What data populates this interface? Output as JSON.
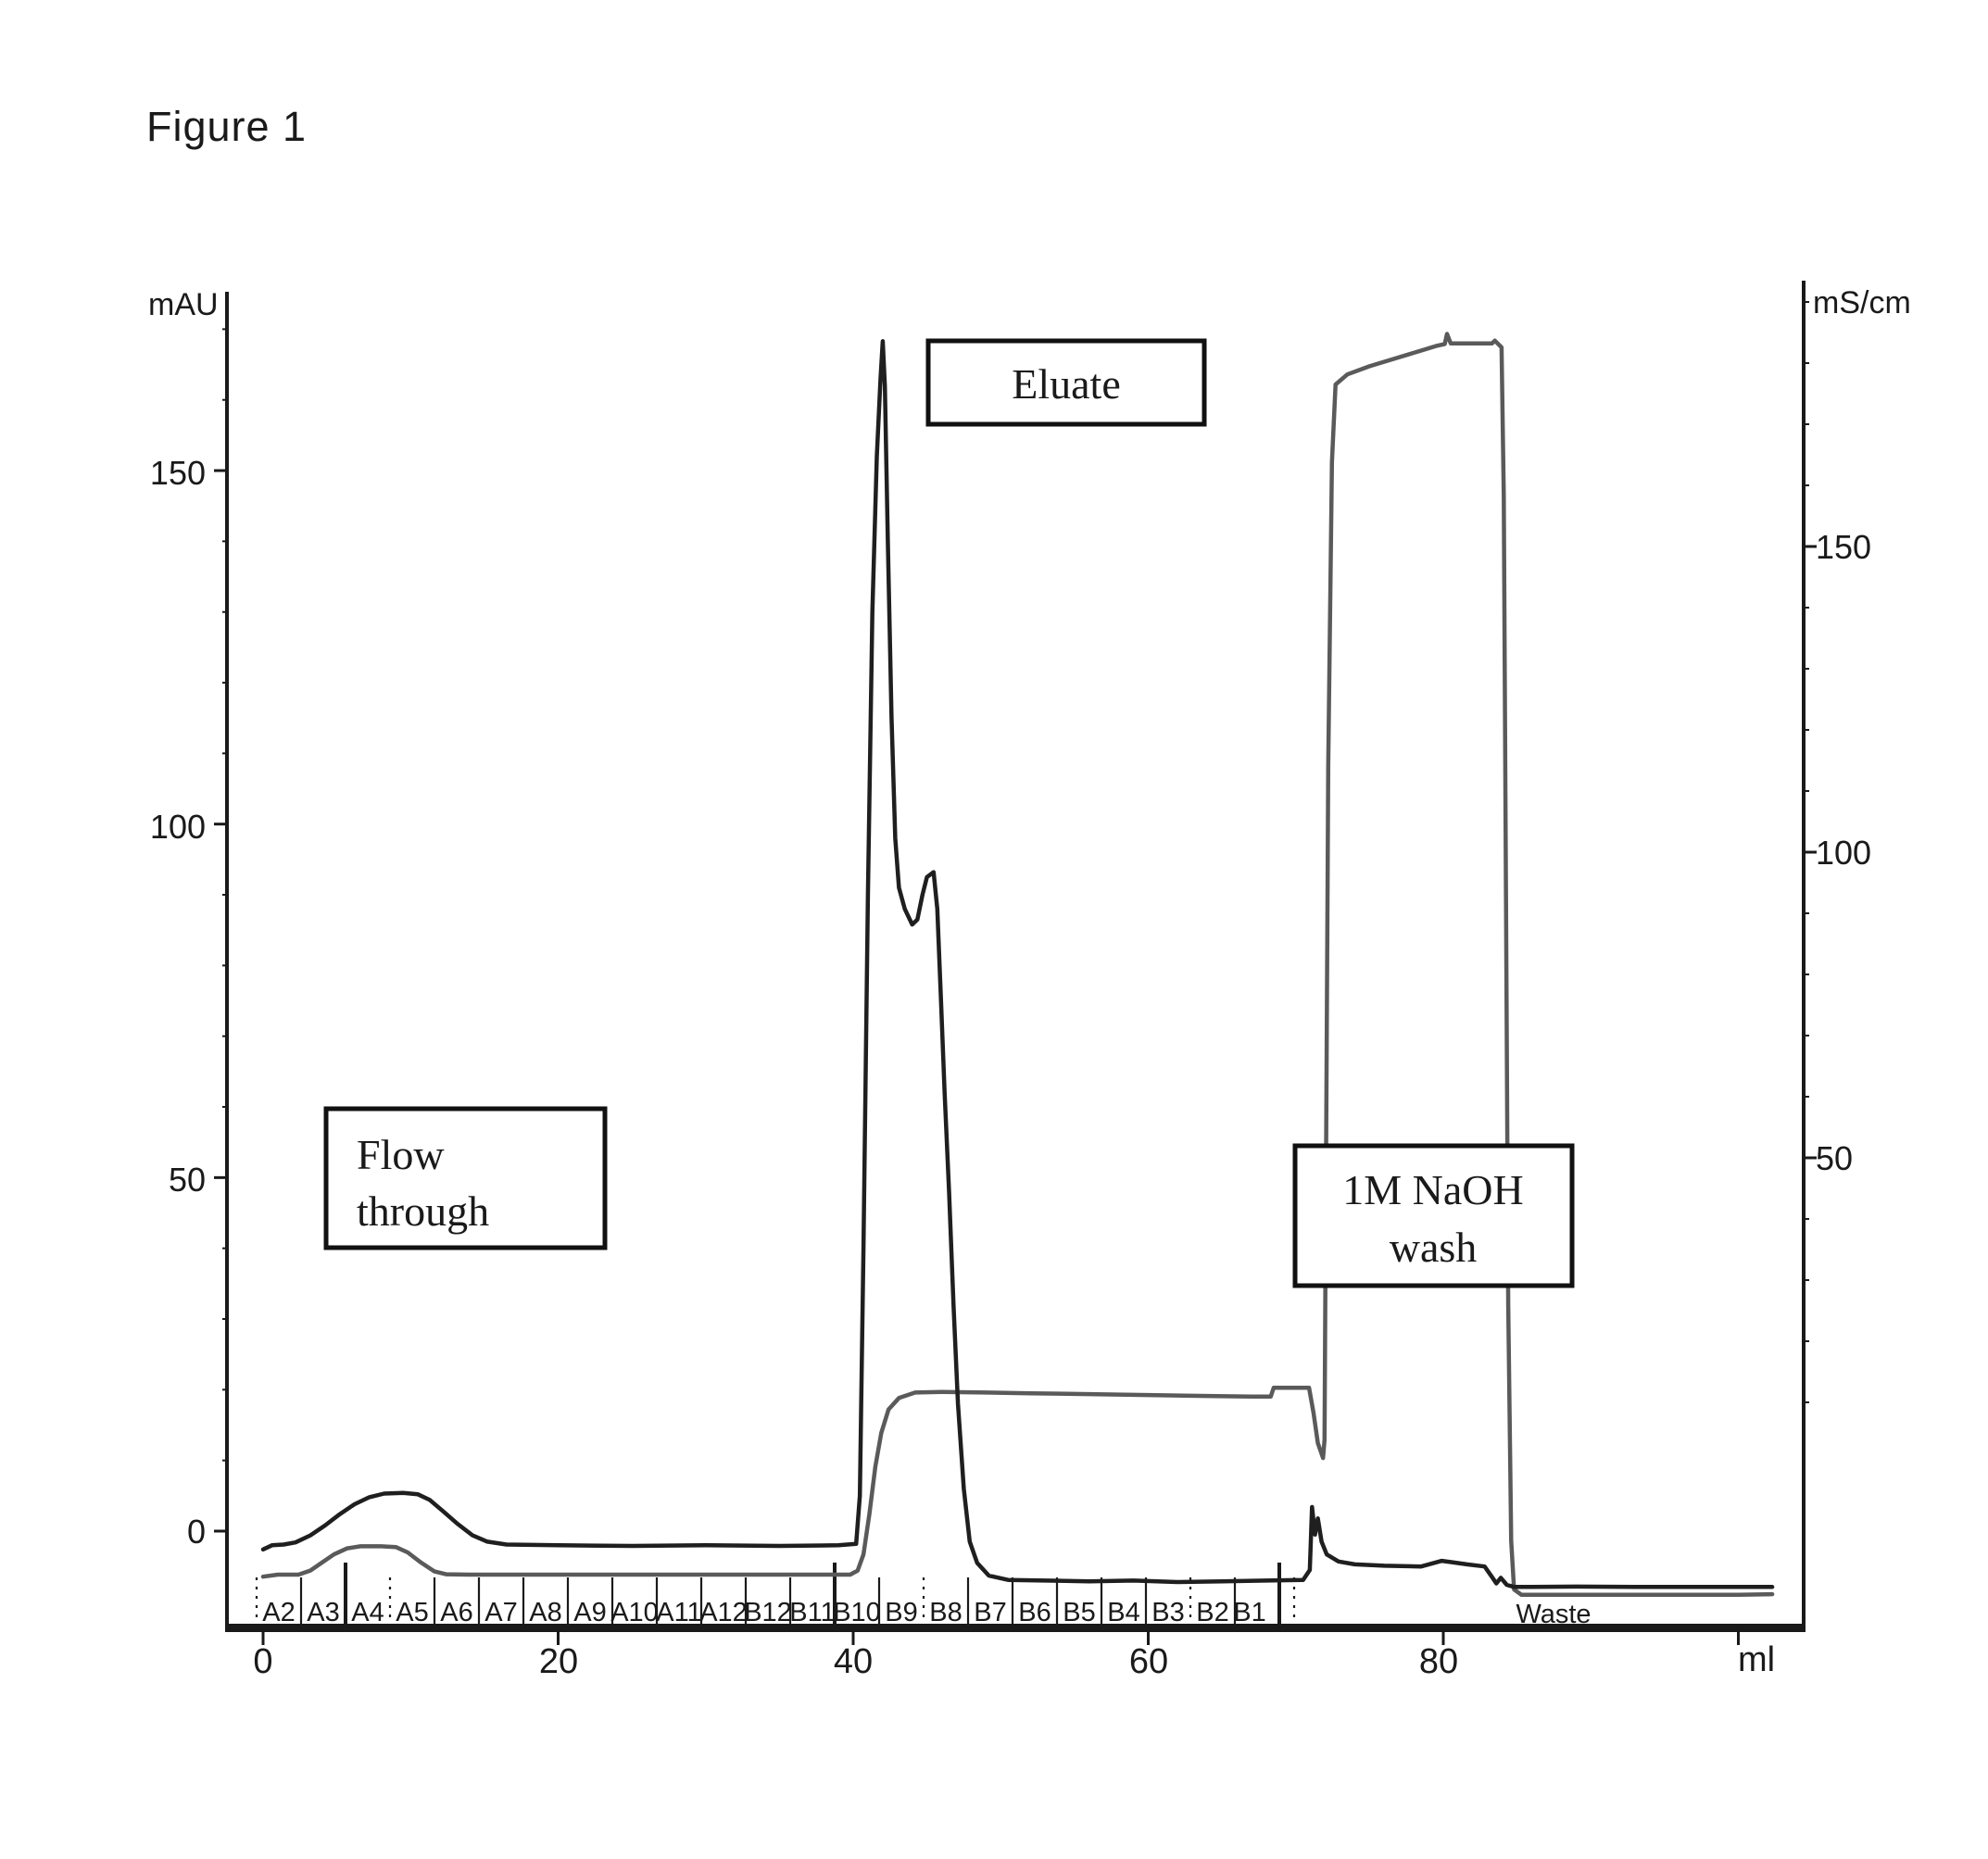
{
  "figure": {
    "title": "Figure 1"
  },
  "colors": {
    "ink": "#1a1a1a",
    "uv_trace": "#1f1f1f",
    "cond_trace": "#5a5a5a",
    "background": "#ffffff"
  },
  "axes": {
    "left": {
      "unit": "mAU",
      "ticks": [
        "150",
        "100",
        "50",
        "0"
      ]
    },
    "right": {
      "unit": "mS/cm",
      "ticks": [
        "150",
        "100",
        "50"
      ]
    },
    "bottom": {
      "ticks": [
        "0",
        "20",
        "40",
        "60",
        "80"
      ],
      "unit": "ml"
    }
  },
  "annotations": {
    "flow_through_line1": "Flow",
    "flow_through_line2": "through",
    "eluate": "Eluate",
    "naoh_line1": "1M NaOH",
    "naoh_line2": "wash",
    "waste": "Waste"
  },
  "fractions": {
    "labels": [
      "A2",
      "A3",
      "A4",
      "A5",
      "A6",
      "A7",
      "A8",
      "A9",
      "A10",
      "A11",
      "A12",
      "B12",
      "B11",
      "B10",
      "B9",
      "B8",
      "B7",
      "B6",
      "B5",
      "B4",
      "B3",
      "B2",
      "B1"
    ]
  },
  "chart_data": {
    "type": "line",
    "title": "Figure 1",
    "xlabel": "ml",
    "x_range": [
      0,
      104
    ],
    "left_axis": {
      "label": "mAU",
      "ticks": [
        0,
        50,
        100,
        150
      ]
    },
    "right_axis": {
      "label": "mS/cm",
      "ticks": [
        50,
        100,
        150
      ]
    },
    "grid": false,
    "legend_position": "none",
    "annotations": [
      {
        "text": "Flow through",
        "x_ml": 8,
        "axis": "left"
      },
      {
        "text": "Eluate",
        "x_ml": 47,
        "axis": "left"
      },
      {
        "text": "1M NaOH wash",
        "x_ml": 78,
        "axis": "right"
      },
      {
        "text": "Waste",
        "x_ml": 87,
        "axis": "left"
      }
    ],
    "fraction_ticks_ml": {
      "start": 0,
      "width_ml": 3,
      "labels": [
        "A2",
        "A3",
        "A4",
        "A5",
        "A6",
        "A7",
        "A8",
        "A9",
        "A10",
        "A11",
        "A12",
        "B12",
        "B11",
        "B10",
        "B9",
        "B8",
        "B7",
        "B6",
        "B5",
        "B4",
        "B3",
        "B2",
        "B1"
      ]
    },
    "series": [
      {
        "name": "UV absorbance (mAU, left axis)",
        "points": [
          [
            0,
            -2.6
          ],
          [
            0.6,
            -2.0
          ],
          [
            1.4,
            -1.9
          ],
          [
            2.2,
            -1.6
          ],
          [
            3.2,
            -0.6
          ],
          [
            4.2,
            0.8
          ],
          [
            5.2,
            2.4
          ],
          [
            6.2,
            3.8
          ],
          [
            7.2,
            4.8
          ],
          [
            8.2,
            5.3
          ],
          [
            9.5,
            5.4
          ],
          [
            10.5,
            5.2
          ],
          [
            11.3,
            4.4
          ],
          [
            12.2,
            2.8
          ],
          [
            13.2,
            1.0
          ],
          [
            14.2,
            -0.6
          ],
          [
            15.2,
            -1.5
          ],
          [
            16.5,
            -1.9
          ],
          [
            20,
            -2.0
          ],
          [
            25,
            -2.1
          ],
          [
            30,
            -2.0
          ],
          [
            35,
            -2.1
          ],
          [
            39,
            -2.0
          ],
          [
            40.2,
            -1.8
          ],
          [
            40.45,
            5
          ],
          [
            40.7,
            40
          ],
          [
            41.0,
            90
          ],
          [
            41.3,
            130
          ],
          [
            41.6,
            152
          ],
          [
            41.85,
            163
          ],
          [
            42.0,
            168.3
          ],
          [
            42.15,
            162
          ],
          [
            42.35,
            140
          ],
          [
            42.6,
            115
          ],
          [
            42.85,
            98
          ],
          [
            43.1,
            91
          ],
          [
            43.5,
            88
          ],
          [
            44.0,
            85.8
          ],
          [
            44.35,
            86.5
          ],
          [
            44.7,
            90
          ],
          [
            45.0,
            92.5
          ],
          [
            45.45,
            93.2
          ],
          [
            45.7,
            88
          ],
          [
            45.95,
            75
          ],
          [
            46.2,
            62
          ],
          [
            46.5,
            48
          ],
          [
            46.8,
            32
          ],
          [
            47.1,
            18
          ],
          [
            47.5,
            6
          ],
          [
            47.9,
            -1.5
          ],
          [
            48.4,
            -4.5
          ],
          [
            49.2,
            -6.3
          ],
          [
            50.5,
            -6.9
          ],
          [
            53,
            -7.0
          ],
          [
            56,
            -7.1
          ],
          [
            59,
            -7.0
          ],
          [
            62,
            -7.2
          ],
          [
            65,
            -7.1
          ],
          [
            68,
            -7.0
          ],
          [
            70.5,
            -6.9
          ],
          [
            70.95,
            -5.5
          ],
          [
            71.1,
            3.4
          ],
          [
            71.3,
            -0.5
          ],
          [
            71.5,
            1.8
          ],
          [
            71.75,
            -1.5
          ],
          [
            72.1,
            -3.3
          ],
          [
            72.9,
            -4.3
          ],
          [
            74,
            -4.7
          ],
          [
            76,
            -4.9
          ],
          [
            78.5,
            -5.0
          ],
          [
            79.9,
            -4.2
          ],
          [
            80.6,
            -4.4
          ],
          [
            81.6,
            -4.7
          ],
          [
            82.8,
            -5.0
          ],
          [
            83.3,
            -6.5
          ],
          [
            83.6,
            -7.4
          ],
          [
            83.9,
            -6.6
          ],
          [
            84.3,
            -7.6
          ],
          [
            84.8,
            -7.9
          ],
          [
            86,
            -7.9
          ],
          [
            89,
            -7.85
          ],
          [
            93,
            -7.9
          ],
          [
            98,
            -7.9
          ],
          [
            102.3,
            -7.9
          ]
        ]
      },
      {
        "name": "Conductivity (mS/cm, right axis)",
        "points": [
          [
            0,
            -0.3
          ],
          [
            1,
            0
          ],
          [
            2.4,
            0
          ],
          [
            3.2,
            0.6
          ],
          [
            4.0,
            1.8
          ],
          [
            4.8,
            3.0
          ],
          [
            5.7,
            3.9
          ],
          [
            6.6,
            4.2
          ],
          [
            8.0,
            4.2
          ],
          [
            9.0,
            4.1
          ],
          [
            9.8,
            3.3
          ],
          [
            10.7,
            1.8
          ],
          [
            11.6,
            0.5
          ],
          [
            12.4,
            0.05
          ],
          [
            14,
            0
          ],
          [
            18,
            0
          ],
          [
            24,
            0
          ],
          [
            30,
            0
          ],
          [
            36,
            0
          ],
          [
            39.8,
            0
          ],
          [
            40.3,
            0.6
          ],
          [
            40.7,
            3
          ],
          [
            41.1,
            9
          ],
          [
            41.5,
            16
          ],
          [
            41.9,
            21
          ],
          [
            42.4,
            24.5
          ],
          [
            43.1,
            26.2
          ],
          [
            44.2,
            27.0
          ],
          [
            46,
            27.1
          ],
          [
            49,
            27.0
          ],
          [
            52,
            26.9
          ],
          [
            55,
            26.8
          ],
          [
            58,
            26.7
          ],
          [
            61,
            26.6
          ],
          [
            64,
            26.5
          ],
          [
            67,
            26.4
          ],
          [
            68.3,
            26.4
          ],
          [
            68.5,
            27.7
          ],
          [
            70.9,
            27.7
          ],
          [
            71.2,
            24
          ],
          [
            71.5,
            19.5
          ],
          [
            71.85,
            17.3
          ],
          [
            71.95,
            20
          ],
          [
            72.05,
            60
          ],
          [
            72.2,
            120
          ],
          [
            72.45,
            165
          ],
          [
            72.7,
            176.5
          ],
          [
            73.5,
            178
          ],
          [
            75,
            179.2
          ],
          [
            76.5,
            180.2
          ],
          [
            78,
            181.2
          ],
          [
            79.5,
            182.2
          ],
          [
            80.1,
            182.5
          ],
          [
            80.25,
            184
          ],
          [
            80.5,
            182.6
          ],
          [
            81.5,
            182.6
          ],
          [
            82.5,
            182.6
          ],
          [
            83.3,
            182.6
          ],
          [
            83.5,
            183
          ],
          [
            83.95,
            182
          ],
          [
            84.1,
            160
          ],
          [
            84.25,
            100
          ],
          [
            84.4,
            40
          ],
          [
            84.6,
            5
          ],
          [
            84.8,
            -2.2
          ],
          [
            85.3,
            -3.0
          ],
          [
            86.5,
            -3.0
          ],
          [
            89,
            -3.0
          ],
          [
            92,
            -3.0
          ],
          [
            96,
            -3.0
          ],
          [
            100,
            -3.0
          ],
          [
            102.3,
            -2.9
          ]
        ]
      }
    ]
  }
}
